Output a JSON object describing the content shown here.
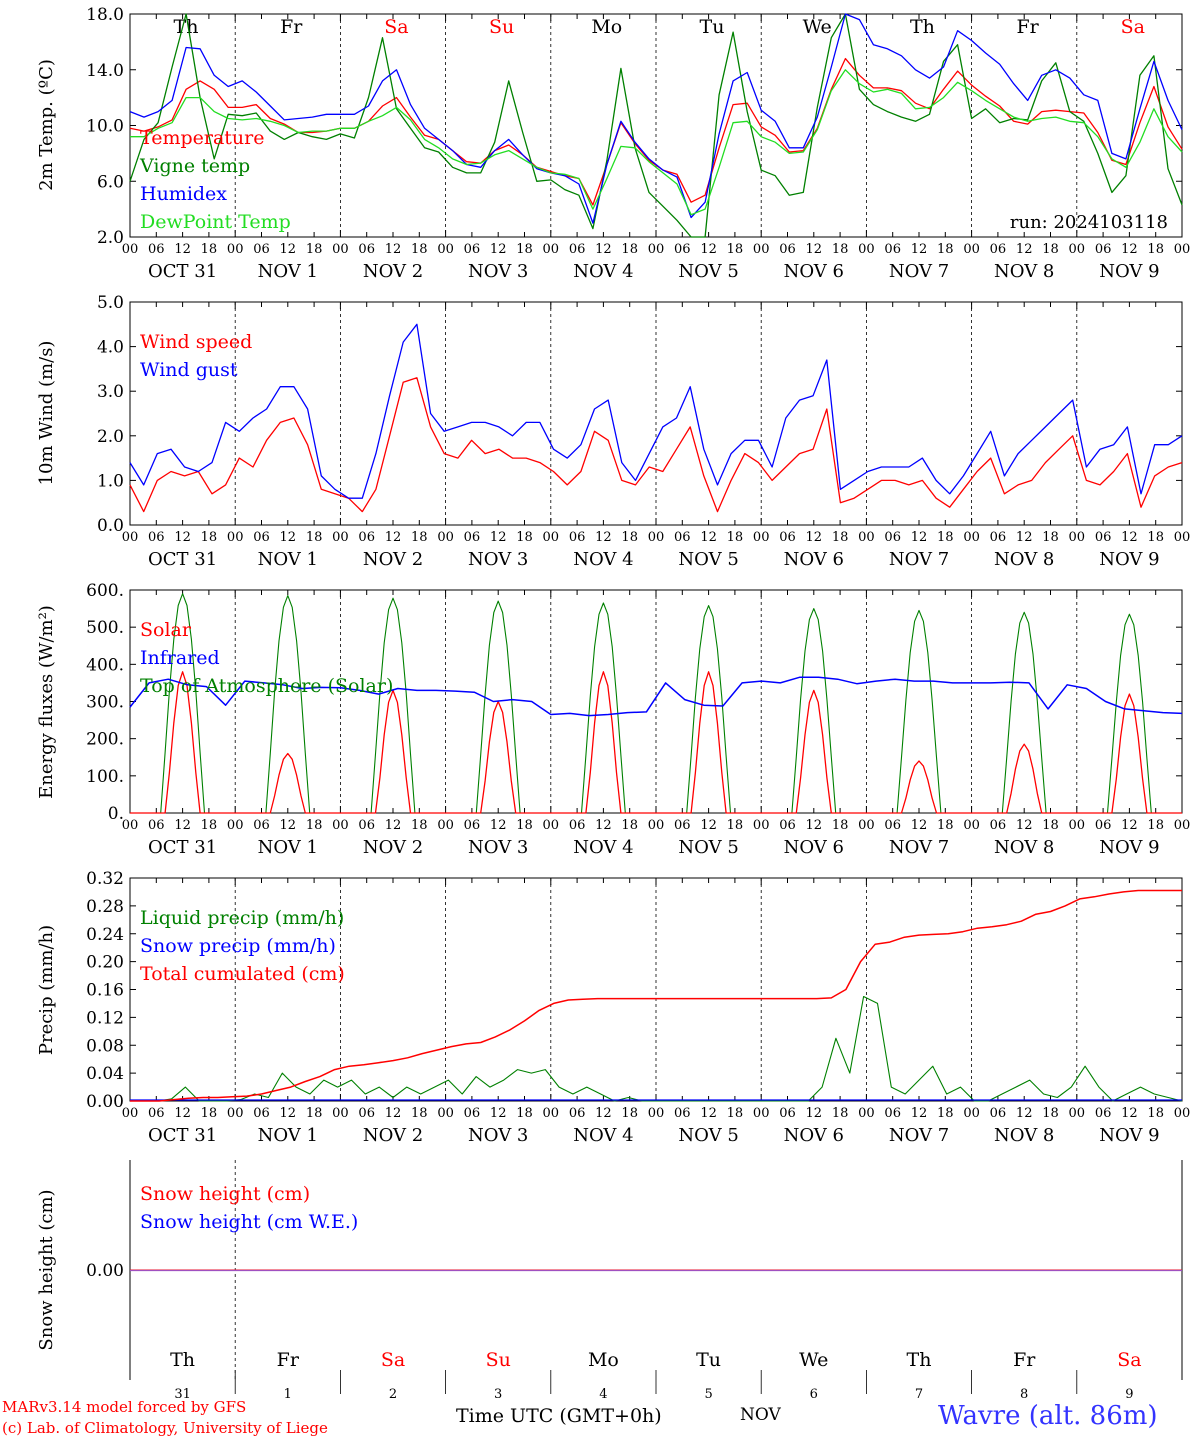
{
  "colors": {
    "red": "#ff0000",
    "green": "#008000",
    "blue": "#0000ff",
    "lightgreen": "#22dd22",
    "black": "#000000",
    "purple": "#a050c0"
  },
  "days": [
    {
      "abbr": "Th",
      "color": "#000000"
    },
    {
      "abbr": "Fr",
      "color": "#000000"
    },
    {
      "abbr": "Sa",
      "color": "#ff0000"
    },
    {
      "abbr": "Su",
      "color": "#ff0000"
    },
    {
      "abbr": "Mo",
      "color": "#000000"
    },
    {
      "abbr": "Tu",
      "color": "#000000"
    },
    {
      "abbr": "We",
      "color": "#000000"
    },
    {
      "abbr": "Th",
      "color": "#000000"
    },
    {
      "abbr": "Fr",
      "color": "#000000"
    },
    {
      "abbr": "Sa",
      "color": "#ff0000"
    }
  ],
  "dates": [
    "OCT 31",
    "NOV  1",
    "NOV  2",
    "NOV  3",
    "NOV  4",
    "NOV  5",
    "NOV  6",
    "NOV  7",
    "NOV  8",
    "NOV  9"
  ],
  "hour_ticks": [
    "00",
    "06",
    "12",
    "18"
  ],
  "bottom_day_numbers": [
    "31",
    "1",
    "2",
    "3",
    "4",
    "5",
    "6",
    "7",
    "8",
    "9"
  ],
  "footer": {
    "model": "MARv3.14 model forced by GFS",
    "credit": "(c) Lab. of Climatology, University of Liege",
    "time_label": "Time UTC (GMT+0h)",
    "month": "NOV",
    "location": "Wavre (alt. 86m)"
  },
  "chart_data": [
    {
      "type": "line",
      "ylabel": "2m Temp. (ºC)",
      "ylim": [
        2.0,
        18.0
      ],
      "yticks": [
        "2.0",
        "6.0",
        "10.0",
        "14.0",
        "18.0"
      ],
      "annotation": "run: 2024103118",
      "time_step_hours": 3,
      "series": [
        {
          "name": "Temperature",
          "color": "#ff0000",
          "values": [
            9.8,
            9.6,
            9.9,
            10.4,
            12.6,
            13.2,
            12.6,
            11.3,
            11.3,
            11.5,
            10.5,
            10.1,
            9.5,
            9.5,
            9.6,
            9.8,
            9.8,
            10.3,
            11.4,
            12.0,
            10.6,
            9.3,
            9.0,
            8.2,
            7.4,
            7.3,
            8.2,
            8.6,
            7.9,
            7.0,
            6.7,
            6.4,
            6.2,
            4.3,
            7.2,
            10.2,
            8.7,
            7.5,
            6.8,
            6.5,
            4.5,
            5.0,
            8.4,
            11.5,
            11.6,
            9.9,
            9.3,
            8.1,
            8.2,
            9.8,
            12.6,
            14.8,
            13.6,
            12.7,
            12.7,
            12.5,
            11.6,
            11.2,
            12.6,
            13.9,
            12.9,
            12.1,
            11.4,
            10.3,
            10.1,
            11.0,
            11.1,
            11.0,
            10.9,
            9.5,
            7.5,
            7.2,
            10.2,
            12.8,
            9.9,
            8.3
          ]
        },
        {
          "name": "Vigne temp",
          "color": "#008000",
          "values": [
            6.0,
            9.0,
            10.2,
            14.2,
            18.0,
            12.0,
            7.6,
            10.8,
            10.7,
            10.9,
            9.6,
            9.0,
            9.5,
            9.2,
            9.0,
            9.4,
            9.1,
            12.0,
            16.3,
            11.2,
            9.8,
            8.4,
            8.1,
            7.0,
            6.6,
            6.6,
            8.8,
            13.2,
            9.5,
            6.0,
            6.1,
            5.4,
            5.0,
            2.6,
            7.5,
            14.1,
            8.4,
            5.2,
            4.2,
            3.2,
            2.0,
            2.0,
            12.2,
            16.7,
            11.0,
            6.8,
            6.4,
            5.0,
            5.2,
            11.3,
            16.3,
            18.0,
            12.6,
            11.5,
            11.0,
            10.6,
            10.3,
            10.8,
            14.6,
            15.8,
            10.5,
            11.2,
            10.2,
            10.5,
            10.4,
            13.2,
            14.5,
            11.0,
            10.3,
            8.0,
            5.2,
            6.4,
            13.6,
            15.0,
            6.9,
            4.3
          ]
        },
        {
          "name": "Humidex",
          "color": "#0000ff",
          "values": [
            11.0,
            10.6,
            11.0,
            11.8,
            15.6,
            15.5,
            13.6,
            12.8,
            13.2,
            12.4,
            11.4,
            10.4,
            10.5,
            10.6,
            10.8,
            10.8,
            10.8,
            11.4,
            13.2,
            14.0,
            11.5,
            9.8,
            9.0,
            8.2,
            7.2,
            7.0,
            8.2,
            9.0,
            7.9,
            6.9,
            6.6,
            6.4,
            5.8,
            3.0,
            7.2,
            10.3,
            8.8,
            7.6,
            6.8,
            6.3,
            3.4,
            4.5,
            9.4,
            13.2,
            13.8,
            11.1,
            10.3,
            8.4,
            8.4,
            10.6,
            14.2,
            18.0,
            17.6,
            15.8,
            15.5,
            15.0,
            14.0,
            13.4,
            14.2,
            16.8,
            16.1,
            15.2,
            14.4,
            13.0,
            11.8,
            13.6,
            14.0,
            13.4,
            12.2,
            11.8,
            8.0,
            7.6,
            11.2,
            14.6,
            11.8,
            9.7
          ]
        },
        {
          "name": "DewPoint Temp",
          "color": "#22dd22",
          "values": [
            9.2,
            9.2,
            9.8,
            10.2,
            12.0,
            12.0,
            11.0,
            10.5,
            10.4,
            10.5,
            10.3,
            10.0,
            9.5,
            9.6,
            9.6,
            9.8,
            9.8,
            10.3,
            10.7,
            11.3,
            10.4,
            9.0,
            8.4,
            7.6,
            7.2,
            7.3,
            7.9,
            8.2,
            7.6,
            7.0,
            6.6,
            6.5,
            6.2,
            4.0,
            6.2,
            8.5,
            8.4,
            7.4,
            6.6,
            5.8,
            3.6,
            4.0,
            7.0,
            10.2,
            10.3,
            9.2,
            8.8,
            8.0,
            8.1,
            9.7,
            12.5,
            14.0,
            13.0,
            12.4,
            12.6,
            12.3,
            11.2,
            11.3,
            12.0,
            13.1,
            12.5,
            11.8,
            11.2,
            10.6,
            10.3,
            10.5,
            10.6,
            10.3,
            10.2,
            9.2,
            7.6,
            7.0,
            8.8,
            11.2,
            9.2,
            8.1
          ]
        }
      ]
    },
    {
      "type": "line",
      "ylabel": "10m Wind (m/s)",
      "ylim": [
        0.0,
        5.0
      ],
      "yticks": [
        "0.0",
        "1.0",
        "2.0",
        "3.0",
        "4.0",
        "5.0"
      ],
      "time_step_hours": 3,
      "series": [
        {
          "name": "Wind speed",
          "color": "#ff0000",
          "values": [
            0.9,
            0.3,
            1.0,
            1.2,
            1.1,
            1.2,
            0.7,
            0.9,
            1.5,
            1.3,
            1.9,
            2.3,
            2.4,
            1.8,
            0.8,
            0.7,
            0.6,
            0.3,
            0.8,
            2.0,
            3.2,
            3.3,
            2.2,
            1.6,
            1.5,
            1.9,
            1.6,
            1.7,
            1.5,
            1.5,
            1.4,
            1.2,
            0.9,
            1.2,
            2.1,
            1.9,
            1.0,
            0.9,
            1.3,
            1.2,
            1.7,
            2.2,
            1.1,
            0.3,
            1.0,
            1.6,
            1.4,
            1.0,
            1.3,
            1.6,
            1.7,
            2.6,
            0.5,
            0.6,
            0.8,
            1.0,
            1.0,
            0.9,
            1.0,
            0.6,
            0.4,
            0.8,
            1.2,
            1.5,
            0.7,
            0.9,
            1.0,
            1.4,
            1.7,
            2.0,
            1.0,
            0.9,
            1.2,
            1.6,
            0.4,
            1.1,
            1.3,
            1.4
          ]
        },
        {
          "name": "Wind gust",
          "color": "#0000ff",
          "values": [
            1.4,
            0.9,
            1.6,
            1.7,
            1.3,
            1.2,
            1.4,
            2.3,
            2.1,
            2.4,
            2.6,
            3.1,
            3.1,
            2.6,
            1.1,
            0.8,
            0.6,
            0.6,
            1.6,
            2.9,
            4.1,
            4.5,
            2.5,
            2.1,
            2.2,
            2.3,
            2.3,
            2.2,
            2.0,
            2.3,
            2.3,
            1.7,
            1.5,
            1.8,
            2.6,
            2.8,
            1.4,
            1.0,
            1.6,
            2.2,
            2.4,
            3.1,
            1.7,
            0.9,
            1.6,
            1.9,
            1.9,
            1.3,
            2.4,
            2.8,
            2.9,
            3.7,
            0.8,
            1.0,
            1.2,
            1.3,
            1.3,
            1.3,
            1.5,
            1.0,
            0.7,
            1.1,
            1.6,
            2.1,
            1.1,
            1.6,
            1.9,
            2.2,
            2.5,
            2.8,
            1.3,
            1.7,
            1.8,
            2.2,
            0.7,
            1.8,
            1.8,
            2.0
          ]
        }
      ]
    },
    {
      "type": "line",
      "ylabel": "Energy fluxes (W/m²)",
      "ylim": [
        0,
        600
      ],
      "yticks": [
        "0.",
        "100.",
        "200.",
        "300.",
        "400.",
        "500.",
        "600."
      ],
      "series": [
        {
          "name": "Solar",
          "color": "#ff0000",
          "peaks": [
            380,
            160,
            330,
            300,
            380,
            380,
            330,
            140,
            185,
            320
          ]
        },
        {
          "name": "Infrared",
          "color": "#0000ff",
          "values": [
            285,
            350,
            360,
            345,
            340,
            290,
            355,
            350,
            345,
            335,
            338,
            337,
            330,
            320,
            335,
            330,
            330,
            328,
            325,
            300,
            305,
            300,
            265,
            268,
            262,
            265,
            270,
            272,
            350,
            305,
            290,
            288,
            350,
            355,
            350,
            365,
            365,
            360,
            348,
            355,
            360,
            355,
            355,
            350,
            350,
            350,
            352,
            350,
            280,
            345,
            335,
            300,
            280,
            275,
            270,
            268
          ]
        },
        {
          "name": "Top of Atmosphere (Solar)",
          "color": "#008000",
          "peaks": [
            590,
            585,
            578,
            570,
            565,
            558,
            550,
            545,
            540,
            535
          ]
        }
      ]
    },
    {
      "type": "line",
      "ylabel": "Precip (mm/h)",
      "ylim": [
        0.0,
        0.32
      ],
      "yticks": [
        "0.00",
        "0.04",
        "0.08",
        "0.12",
        "0.16",
        "0.20",
        "0.24",
        "0.28",
        "0.32"
      ],
      "series": [
        {
          "name": "Liquid precip (mm/h)",
          "color": "#008000",
          "values": [
            0,
            0,
            0,
            0.003,
            0.02,
            0,
            0,
            0,
            0.002,
            0.01,
            0.005,
            0.04,
            0.02,
            0.01,
            0.03,
            0.02,
            0.03,
            0.01,
            0.02,
            0.005,
            0.02,
            0.01,
            0.02,
            0.03,
            0.01,
            0.035,
            0.02,
            0.03,
            0.045,
            0.04,
            0.045,
            0.02,
            0.01,
            0.02,
            0.01,
            0,
            0.005,
            0,
            0,
            0,
            0,
            0,
            0,
            0,
            0,
            0,
            0,
            0,
            0,
            0,
            0.02,
            0.09,
            0.04,
            0.15,
            0.14,
            0.02,
            0.01,
            0.03,
            0.05,
            0.01,
            0.02,
            0,
            0,
            0.01,
            0.02,
            0.03,
            0.01,
            0.005,
            0.02,
            0.05,
            0.02,
            0,
            0.01,
            0.02,
            0.01,
            0.005,
            0
          ]
        },
        {
          "name": "Snow precip (mm/h)",
          "color": "#0000ff",
          "values": []
        },
        {
          "name": "Total cumulated (cm)",
          "color": "#ff0000",
          "values": [
            0,
            0,
            0,
            0.002,
            0.004,
            0.005,
            0.005,
            0.006,
            0.007,
            0.01,
            0.015,
            0.02,
            0.028,
            0.035,
            0.045,
            0.05,
            0.052,
            0.055,
            0.058,
            0.062,
            0.068,
            0.073,
            0.078,
            0.082,
            0.084,
            0.092,
            0.102,
            0.115,
            0.13,
            0.14,
            0.145,
            0.146,
            0.147,
            0.147,
            0.147,
            0.147,
            0.147,
            0.147,
            0.147,
            0.147,
            0.147,
            0.147,
            0.147,
            0.147,
            0.147,
            0.147,
            0.147,
            0.147,
            0.148,
            0.16,
            0.2,
            0.225,
            0.228,
            0.235,
            0.238,
            0.239,
            0.24,
            0.243,
            0.248,
            0.25,
            0.253,
            0.258,
            0.268,
            0.272,
            0.28,
            0.29,
            0.293,
            0.297,
            0.3,
            0.302,
            0.302,
            0.302,
            0.302
          ]
        }
      ]
    },
    {
      "type": "line",
      "ylabel": "Snow height (cm)",
      "yticks": [
        "0.00"
      ],
      "series": [
        {
          "name": "Snow height (cm)",
          "color": "#ff0000",
          "values": [
            0,
            0
          ]
        },
        {
          "name": "Snow height (cm W.E.)",
          "color": "#0000ff",
          "values": [
            0,
            0
          ]
        }
      ]
    }
  ]
}
